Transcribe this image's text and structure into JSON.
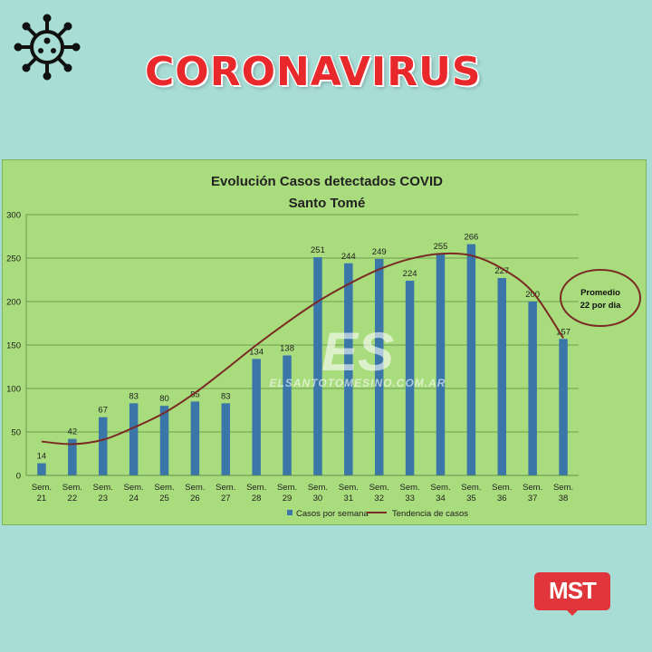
{
  "header": {
    "title": "CORONAVIRUS",
    "icon": "virus-icon"
  },
  "colors": {
    "background": "#a8ddd6",
    "chart_background": "#a9dc7c",
    "bar": "#3a76a8",
    "trend": "#7a2b24",
    "headline": "#e8282a",
    "logo": "#e0353a"
  },
  "watermark": {
    "big": "ES",
    "site": "ELSANTOTOMESINO.COM.AR"
  },
  "annotation": {
    "line1": "Promedio",
    "line2": "22 por dia"
  },
  "logo": {
    "text": "MST"
  },
  "chart_data": {
    "type": "bar",
    "title": "Evolución Casos detectados COVID",
    "subtitle": "Santo Tomé",
    "xlabel": "",
    "ylabel": "",
    "ylim": [
      0,
      300
    ],
    "yticks": [
      0,
      50,
      100,
      150,
      200,
      250,
      300
    ],
    "grid": true,
    "legend_position": "bottom",
    "categories": [
      [
        "Sem.",
        "21"
      ],
      [
        "Sem.",
        "22"
      ],
      [
        "Sem.",
        "23"
      ],
      [
        "Sem.",
        "24"
      ],
      [
        "Sem.",
        "25"
      ],
      [
        "Sem.",
        "26"
      ],
      [
        "Sem.",
        "27"
      ],
      [
        "Sem.",
        "28"
      ],
      [
        "Sem.",
        "29"
      ],
      [
        "Sem.",
        "30"
      ],
      [
        "Sem.",
        "31"
      ],
      [
        "Sem.",
        "32"
      ],
      [
        "Sem.",
        "33"
      ],
      [
        "Sem.",
        "34"
      ],
      [
        "Sem.",
        "35"
      ],
      [
        "Sem.",
        "36"
      ],
      [
        "Sem.",
        "37"
      ],
      [
        "Sem.",
        "38"
      ]
    ],
    "series": [
      {
        "name": "Casos por semana",
        "type": "bar",
        "values": [
          14,
          42,
          67,
          83,
          80,
          85,
          83,
          134,
          138,
          251,
          244,
          249,
          224,
          255,
          266,
          227,
          200,
          157
        ]
      },
      {
        "name": "Tendencia de casos",
        "type": "line",
        "values": [
          39,
          36,
          41,
          55,
          72,
          95,
          122,
          150,
          176,
          200,
          220,
          237,
          249,
          255,
          253,
          238,
          211,
          158
        ]
      }
    ]
  }
}
